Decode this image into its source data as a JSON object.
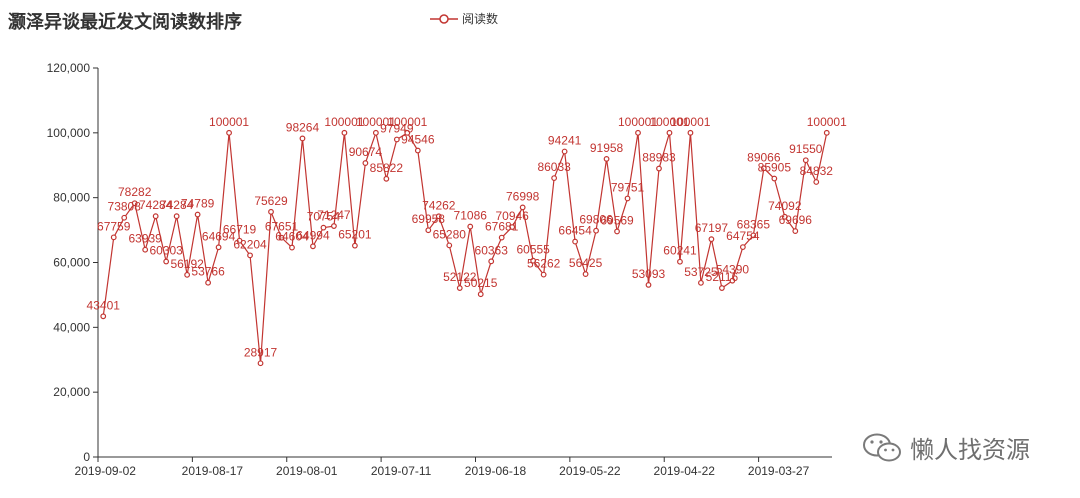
{
  "chart_data": {
    "type": "line",
    "title": "灏泽异谈最近发文阅读数排序",
    "legend": {
      "position": "top-center",
      "entries": [
        "阅读数"
      ]
    },
    "series_color": "#c23531",
    "y_ticks": [
      "0",
      "20,000",
      "40,000",
      "60,000",
      "80,000",
      "100,000",
      "120,000"
    ],
    "ylim": [
      0,
      120000
    ],
    "x_tick_labels": [
      "2019-09-02",
      "2019-08-17",
      "2019-08-01",
      "2019-07-11",
      "2019-06-18",
      "2019-05-22",
      "2019-04-22",
      "2019-03-27"
    ],
    "series": [
      {
        "name": "阅读数",
        "values": [
          43401,
          67759,
          73808,
          78282,
          63939,
          74284,
          60303,
          74284,
          56192,
          74789,
          53766,
          64694,
          100001,
          66719,
          62204,
          28917,
          75629,
          67651,
          64604,
          98264,
          64994,
          70754,
          71247,
          100001,
          65201,
          90674,
          100001,
          85822,
          97949,
          100001,
          94546,
          69958,
          74262,
          65280,
          52122,
          71086,
          50215,
          60363,
          67681,
          70946,
          76998,
          60555,
          56262,
          86033,
          94241,
          66454,
          56425,
          69806,
          91958,
          69569,
          79751,
          100001,
          53093,
          88983,
          100001,
          60241,
          100001,
          53725,
          67197,
          52116,
          54390,
          64754,
          68365,
          89066,
          85905,
          74092,
          69696,
          91550,
          84832,
          100001
        ]
      }
    ]
  },
  "watermark": {
    "text": "懒人找资源",
    "icon": "wechat-icon"
  }
}
